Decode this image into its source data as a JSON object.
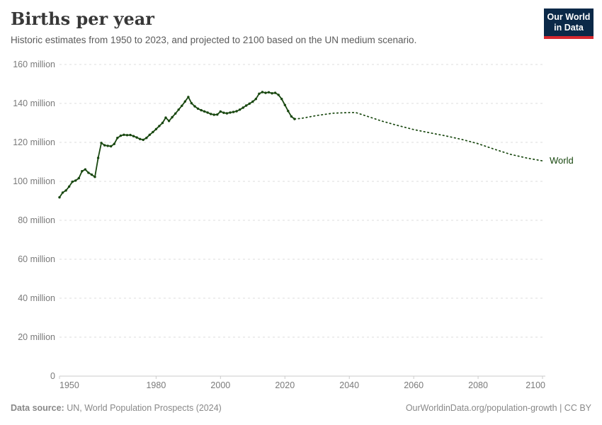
{
  "header": {
    "title": "Births per year",
    "subtitle": "Historic estimates from 1950 to 2023, and projected to 2100 based on the UN medium scenario.",
    "logo": {
      "line1": "Our World",
      "line2": "in Data",
      "bg_color": "#0b2948",
      "accent_color": "#d7282f"
    }
  },
  "footer": {
    "source_label": "Data source:",
    "source_text": " UN, World Population Prospects (2024)",
    "credit": "OurWorldinData.org/population-growth | CC BY"
  },
  "chart_data": {
    "type": "line",
    "entity": "World",
    "end_label": "World",
    "unit": "births per year (millions)",
    "line_color": "#18470f",
    "grid_color": "#dedede",
    "axis_color": "#cbcbcb",
    "tick_label_color": "#7a7a7a",
    "grid": "horizontal dashed",
    "legend_position": "end-of-line label",
    "xlim": [
      1950,
      2100
    ],
    "ylim_millions": [
      0,
      160
    ],
    "x_ticks": [
      1950,
      1980,
      2000,
      2020,
      2040,
      2060,
      2080,
      2100
    ],
    "y_ticks": [
      {
        "value": 0,
        "label": "0"
      },
      {
        "value": 20,
        "label": "20 million"
      },
      {
        "value": 40,
        "label": "40 million"
      },
      {
        "value": 60,
        "label": "60 million"
      },
      {
        "value": 80,
        "label": "80 million"
      },
      {
        "value": 100,
        "label": "100 million"
      },
      {
        "value": 120,
        "label": "120 million"
      },
      {
        "value": 140,
        "label": "140 million"
      },
      {
        "value": 160,
        "label": "160 million"
      }
    ],
    "series": [
      {
        "name": "World — historic estimates",
        "style": "solid",
        "markers": true,
        "years": [
          1950,
          1951,
          1952,
          1953,
          1954,
          1955,
          1956,
          1957,
          1958,
          1959,
          1960,
          1961,
          1962,
          1963,
          1964,
          1965,
          1966,
          1967,
          1968,
          1969,
          1970,
          1971,
          1972,
          1973,
          1974,
          1975,
          1976,
          1977,
          1978,
          1979,
          1980,
          1981,
          1982,
          1983,
          1984,
          1985,
          1986,
          1987,
          1988,
          1989,
          1990,
          1991,
          1992,
          1993,
          1994,
          1995,
          1996,
          1997,
          1998,
          1999,
          2000,
          2001,
          2002,
          2003,
          2004,
          2005,
          2006,
          2007,
          2008,
          2009,
          2010,
          2011,
          2012,
          2013,
          2014,
          2015,
          2016,
          2017,
          2018,
          2019,
          2020,
          2021,
          2022,
          2023
        ],
        "values_millions": [
          91.8,
          94.2,
          95.3,
          97.3,
          99.8,
          100.4,
          101.6,
          105.2,
          106.1,
          104.4,
          103.4,
          102.3,
          112.0,
          119.7,
          118.5,
          118.2,
          118.0,
          119.2,
          122.3,
          123.4,
          123.9,
          123.7,
          123.8,
          123.2,
          122.5,
          121.7,
          121.3,
          122.3,
          123.9,
          125.3,
          126.8,
          128.4,
          130.0,
          132.7,
          131.0,
          132.9,
          134.8,
          136.8,
          138.8,
          141.0,
          143.3,
          140.1,
          138.5,
          137.3,
          136.5,
          135.9,
          135.3,
          134.6,
          134.2,
          134.3,
          135.8,
          135.2,
          134.9,
          135.3,
          135.6,
          136.0,
          136.8,
          137.8,
          138.9,
          139.9,
          140.9,
          142.3,
          145.0,
          145.8,
          145.4,
          145.7,
          145.2,
          145.4,
          144.4,
          142.3,
          139.2,
          136.1,
          133.3,
          132.0
        ]
      },
      {
        "name": "World — UN medium scenario projection",
        "style": "dotted",
        "markers": false,
        "years": [
          2023,
          2025,
          2030,
          2035,
          2040,
          2042,
          2045,
          2050,
          2055,
          2060,
          2065,
          2070,
          2075,
          2080,
          2085,
          2090,
          2095,
          2100
        ],
        "values_millions": [
          132.0,
          132.3,
          133.8,
          135.0,
          135.3,
          135.3,
          133.7,
          131.0,
          128.7,
          126.6,
          124.9,
          123.3,
          121.5,
          119.3,
          116.5,
          113.9,
          112.0,
          110.5
        ]
      }
    ]
  }
}
